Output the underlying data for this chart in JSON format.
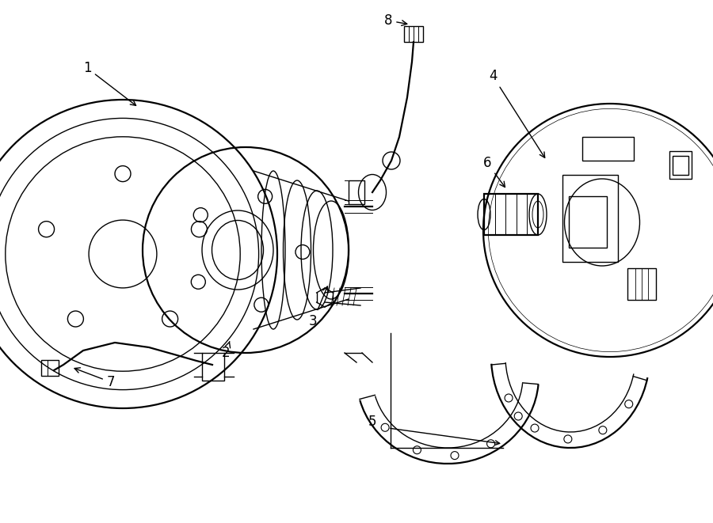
{
  "background_color": "#ffffff",
  "line_color": "#000000",
  "lw": 1.0,
  "lw2": 1.6,
  "font_size": 12,
  "fig_width": 9.0,
  "fig_height": 6.61
}
